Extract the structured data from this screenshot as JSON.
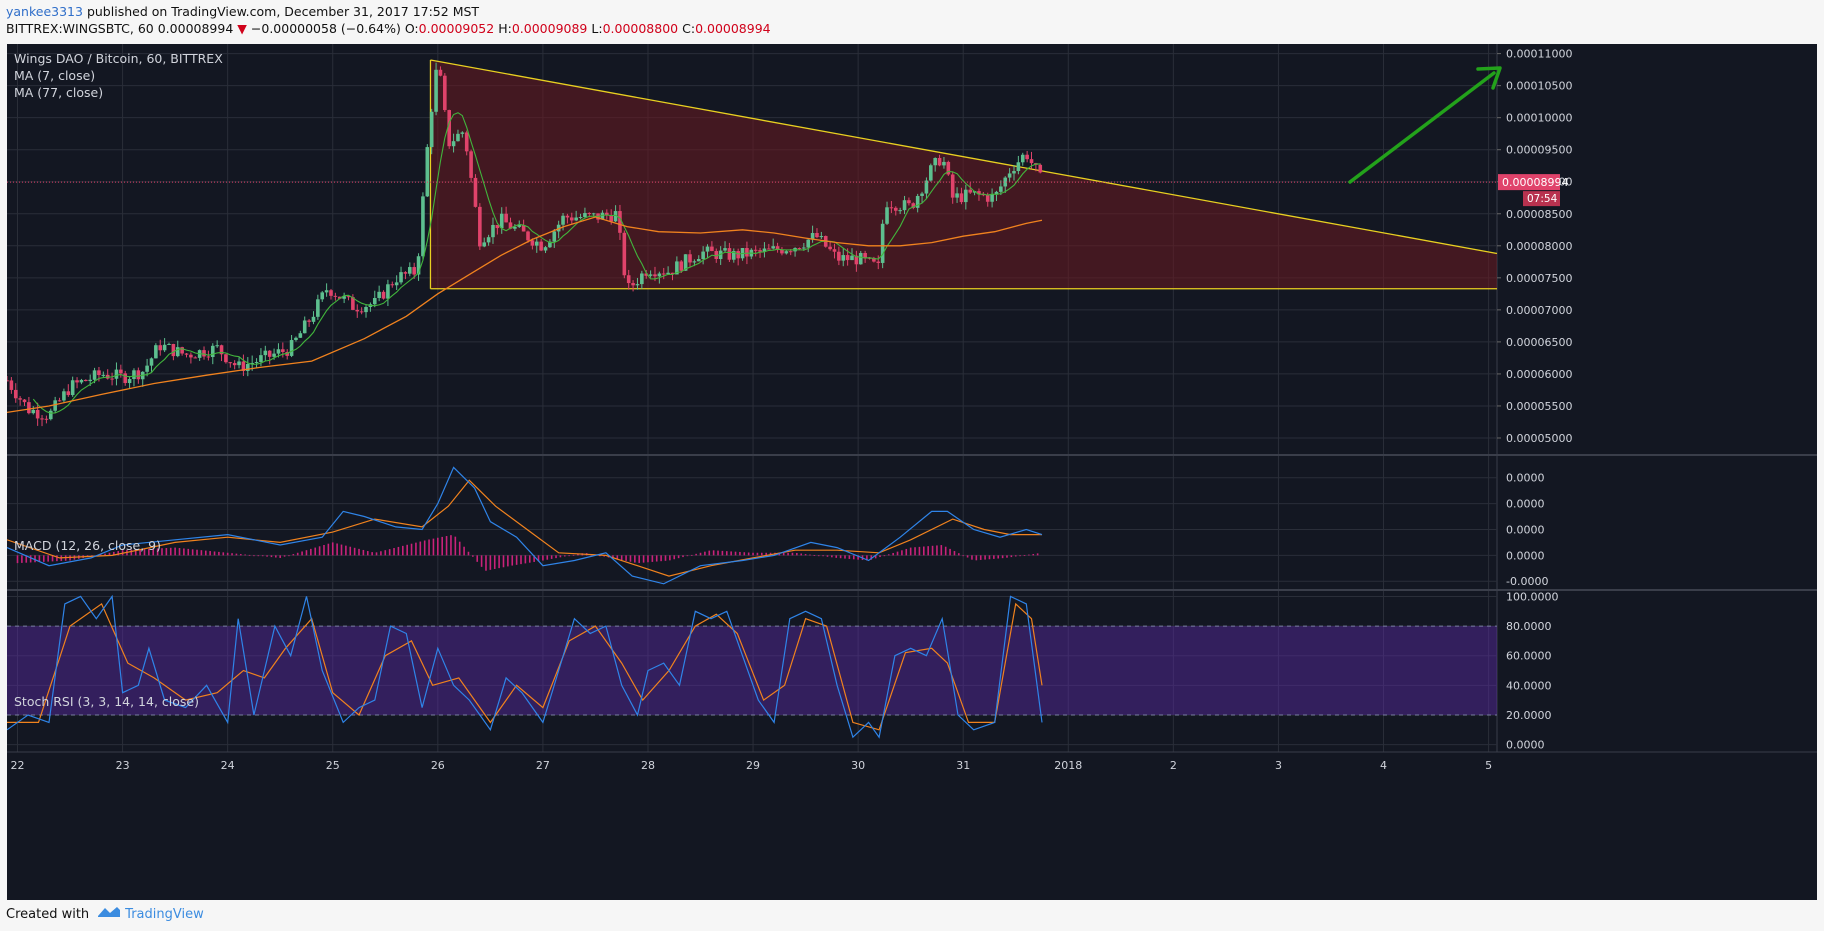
{
  "header": {
    "username": "yankee3313",
    "published_text": "published on TradingView.com, December 31, 2017 17:52 MST",
    "symbol": "BITTREX:WINGSBTC, 60",
    "last": "0.00008994",
    "down_arrow": "▼",
    "change": "−0.00000058 (−0.64%)",
    "o_label": "O:",
    "o_value": "0.00009052",
    "h_label": "H:",
    "h_value": "0.00009089",
    "l_label": "L:",
    "l_value": "0.00008800",
    "c_label": "C:",
    "c_value": "0.00008994"
  },
  "footer": {
    "created_with": "Created with",
    "brand": "TradingView"
  },
  "colors": {
    "background": "#131722",
    "grid": "#2a2e39",
    "up": "#5dbf8f",
    "down": "#e0436b",
    "ma7": "#41b53c",
    "ma77": "#f0821e",
    "triangle_line": "#e8d021",
    "triangle_fill": "#6b1a20",
    "arrow": "#23a21b",
    "macd": "#2f84e8",
    "signal": "#f0821e",
    "hist": "#c9227a",
    "rsi_k": "#2f84e8",
    "rsi_d": "#f0821e",
    "rsi_band": "#5b2aa6",
    "price_tag": "#e0436b"
  },
  "chart_data": [
    {
      "type": "candlestick",
      "title": "Wings DAO / Bitcoin, 60, BITTREX",
      "legend": [
        "MA (7, close)",
        "MA (77, close)"
      ],
      "x_ticks": [
        "22",
        "23",
        "24",
        "25",
        "26",
        "27",
        "28",
        "29",
        "30",
        "31",
        "2018",
        "2",
        "3",
        "4",
        "5"
      ],
      "y_ticks": [
        "0.00011000",
        "0.00010500",
        "0.00010000",
        "0.00009500",
        "0.00009000",
        "0.00008500",
        "0.00008000",
        "0.00007500",
        "0.00007000",
        "0.00006500",
        "0.00006000",
        "0.00005500",
        "0.00005000"
      ],
      "ylim": [
        4.75e-05,
        0.0001115
      ],
      "xlim": [
        21.9,
        36.08
      ],
      "current_price": "0.00008994",
      "countdown": "07:54",
      "price_path": [
        [
          21.9,
          5.9e-05
        ],
        [
          22.1,
          5.45e-05
        ],
        [
          22.3,
          5.35e-05
        ],
        [
          22.5,
          5.8e-05
        ],
        [
          22.8,
          6e-05
        ],
        [
          23.0,
          5.95e-05
        ],
        [
          23.2,
          6.05e-05
        ],
        [
          23.35,
          6.45e-05
        ],
        [
          23.6,
          6.3e-05
        ],
        [
          23.9,
          6.4e-05
        ],
        [
          24.1,
          6.1e-05
        ],
        [
          24.35,
          6.25e-05
        ],
        [
          24.6,
          6.4e-05
        ],
        [
          24.8,
          6.9e-05
        ],
        [
          24.95,
          7.35e-05
        ],
        [
          25.2,
          7.05e-05
        ],
        [
          25.4,
          7.1e-05
        ],
        [
          25.6,
          7.5e-05
        ],
        [
          25.8,
          7.6e-05
        ],
        [
          25.92,
          9.9e-05
        ],
        [
          26.0,
          0.000109
        ],
        [
          26.1,
          9.6e-05
        ],
        [
          26.25,
          9.8e-05
        ],
        [
          26.4,
          8.1e-05
        ],
        [
          26.6,
          8.4e-05
        ],
        [
          26.8,
          8.2e-05
        ],
        [
          27.0,
          8e-05
        ],
        [
          27.2,
          8.45e-05
        ],
        [
          27.5,
          8.45e-05
        ],
        [
          27.7,
          8.5e-05
        ],
        [
          27.8,
          7.3e-05
        ],
        [
          28.0,
          7.65e-05
        ],
        [
          28.2,
          7.6e-05
        ],
        [
          28.5,
          7.9e-05
        ],
        [
          28.8,
          7.85e-05
        ],
        [
          29.1,
          7.9e-05
        ],
        [
          29.4,
          8e-05
        ],
        [
          29.6,
          8.15e-05
        ],
        [
          29.8,
          7.8e-05
        ],
        [
          30.0,
          7.8e-05
        ],
        [
          30.2,
          7.65e-05
        ],
        [
          30.25,
          8.7e-05
        ],
        [
          30.5,
          8.6e-05
        ],
        [
          30.7,
          9.2e-05
        ],
        [
          30.8,
          9.4e-05
        ],
        [
          30.9,
          8.75e-05
        ],
        [
          31.1,
          8.8e-05
        ],
        [
          31.3,
          8.75e-05
        ],
        [
          31.45,
          9.2e-05
        ],
        [
          31.6,
          9.45e-05
        ],
        [
          31.75,
          8.99e-05
        ]
      ],
      "ma77_path": [
        [
          21.9,
          5.4e-05
        ],
        [
          22.3,
          5.5e-05
        ],
        [
          22.8,
          5.68e-05
        ],
        [
          23.3,
          5.85e-05
        ],
        [
          23.8,
          5.98e-05
        ],
        [
          24.3,
          6.1e-05
        ],
        [
          24.8,
          6.2e-05
        ],
        [
          25.3,
          6.55e-05
        ],
        [
          25.7,
          6.9e-05
        ],
        [
          26.0,
          7.25e-05
        ],
        [
          26.3,
          7.55e-05
        ],
        [
          26.6,
          7.85e-05
        ],
        [
          26.9,
          8.1e-05
        ],
        [
          27.2,
          8.3e-05
        ],
        [
          27.5,
          8.45e-05
        ],
        [
          27.8,
          8.3e-05
        ],
        [
          28.1,
          8.22e-05
        ],
        [
          28.5,
          8.2e-05
        ],
        [
          28.9,
          8.25e-05
        ],
        [
          29.2,
          8.2e-05
        ],
        [
          29.5,
          8.12e-05
        ],
        [
          29.8,
          8.05e-05
        ],
        [
          30.1,
          8e-05
        ],
        [
          30.4,
          8e-05
        ],
        [
          30.7,
          8.05e-05
        ],
        [
          31.0,
          8.15e-05
        ],
        [
          31.3,
          8.22e-05
        ],
        [
          31.6,
          8.35e-05
        ],
        [
          31.75,
          8.4e-05
        ]
      ],
      "triangle": {
        "apex": [
          25.93,
          0.000109
        ],
        "upper_end": [
          36.08,
          7.88e-05
        ],
        "bottom": [
          25.93,
          7.33e-05
        ],
        "bottom_end": [
          36.08,
          7.33e-05
        ]
      }
    },
    {
      "type": "line",
      "title": "MACD (12, 26, close, 9)",
      "y_ticks": [
        "0.0000",
        "0.0000",
        "0.0000",
        "0.0000",
        "-0.0000"
      ],
      "ylim": [
        -1.3,
        3.8
      ],
      "macd": [
        [
          21.9,
          0.3
        ],
        [
          22.3,
          -0.4
        ],
        [
          22.7,
          -0.1
        ],
        [
          23.0,
          0.4
        ],
        [
          23.5,
          0.6
        ],
        [
          24.0,
          0.8
        ],
        [
          24.5,
          0.4
        ],
        [
          24.9,
          0.7
        ],
        [
          25.1,
          1.7
        ],
        [
          25.3,
          1.5
        ],
        [
          25.6,
          1.1
        ],
        [
          25.85,
          1.0
        ],
        [
          26.0,
          2.0
        ],
        [
          26.15,
          3.4
        ],
        [
          26.35,
          2.6
        ],
        [
          26.5,
          1.3
        ],
        [
          26.75,
          0.7
        ],
        [
          27.0,
          -0.4
        ],
        [
          27.3,
          -0.2
        ],
        [
          27.6,
          0.1
        ],
        [
          27.85,
          -0.8
        ],
        [
          28.15,
          -1.1
        ],
        [
          28.5,
          -0.4
        ],
        [
          28.9,
          -0.2
        ],
        [
          29.2,
          0.0
        ],
        [
          29.55,
          0.5
        ],
        [
          29.8,
          0.3
        ],
        [
          30.1,
          -0.2
        ],
        [
          30.4,
          0.7
        ],
        [
          30.7,
          1.7
        ],
        [
          30.85,
          1.7
        ],
        [
          31.1,
          1.0
        ],
        [
          31.35,
          0.7
        ],
        [
          31.6,
          1.0
        ],
        [
          31.75,
          0.8
        ]
      ],
      "signal": [
        [
          21.9,
          0.6
        ],
        [
          22.4,
          -0.1
        ],
        [
          22.9,
          0.0
        ],
        [
          23.5,
          0.5
        ],
        [
          24.0,
          0.7
        ],
        [
          24.5,
          0.5
        ],
        [
          25.0,
          0.9
        ],
        [
          25.4,
          1.4
        ],
        [
          25.85,
          1.1
        ],
        [
          26.1,
          1.9
        ],
        [
          26.3,
          2.9
        ],
        [
          26.55,
          1.9
        ],
        [
          26.85,
          1.0
        ],
        [
          27.15,
          0.1
        ],
        [
          27.6,
          0.0
        ],
        [
          27.9,
          -0.4
        ],
        [
          28.2,
          -0.8
        ],
        [
          28.6,
          -0.4
        ],
        [
          29.0,
          -0.1
        ],
        [
          29.4,
          0.2
        ],
        [
          29.8,
          0.2
        ],
        [
          30.2,
          0.1
        ],
        [
          30.5,
          0.6
        ],
        [
          30.9,
          1.4
        ],
        [
          31.2,
          1.0
        ],
        [
          31.45,
          0.8
        ],
        [
          31.75,
          0.8
        ]
      ],
      "histogram": [
        [
          22.0,
          -0.3
        ],
        [
          22.5,
          -0.2
        ],
        [
          23.0,
          0.2
        ],
        [
          23.5,
          0.3
        ],
        [
          24.0,
          0.1
        ],
        [
          24.5,
          -0.1
        ],
        [
          25.0,
          0.5
        ],
        [
          25.4,
          0.1
        ],
        [
          25.9,
          0.6
        ],
        [
          26.15,
          0.8
        ],
        [
          26.45,
          -0.6
        ],
        [
          26.7,
          -0.4
        ],
        [
          27.0,
          -0.2
        ],
        [
          27.4,
          0.1
        ],
        [
          27.9,
          -0.3
        ],
        [
          28.2,
          -0.2
        ],
        [
          28.6,
          0.2
        ],
        [
          29.0,
          0.1
        ],
        [
          29.4,
          0.1
        ],
        [
          29.8,
          -0.1
        ],
        [
          30.1,
          -0.2
        ],
        [
          30.5,
          0.3
        ],
        [
          30.8,
          0.4
        ],
        [
          31.1,
          -0.2
        ],
        [
          31.4,
          -0.1
        ],
        [
          31.75,
          0.1
        ]
      ]
    },
    {
      "type": "line",
      "title": "Stoch RSI (3, 3, 14, 14, close)",
      "y_ticks": [
        "100.0000",
        "80.0000",
        "60.0000",
        "40.0000",
        "20.0000",
        "0.0000"
      ],
      "ylim": [
        -5,
        103
      ],
      "bands": [
        20,
        80
      ],
      "k": [
        [
          21.9,
          10
        ],
        [
          22.1,
          20
        ],
        [
          22.3,
          15
        ],
        [
          22.45,
          95
        ],
        [
          22.6,
          100
        ],
        [
          22.75,
          85
        ],
        [
          22.9,
          100
        ],
        [
          23.0,
          35
        ],
        [
          23.15,
          40
        ],
        [
          23.25,
          65
        ],
        [
          23.4,
          30
        ],
        [
          23.6,
          25
        ],
        [
          23.8,
          40
        ],
        [
          24.0,
          15
        ],
        [
          24.1,
          85
        ],
        [
          24.25,
          20
        ],
        [
          24.45,
          80
        ],
        [
          24.6,
          60
        ],
        [
          24.75,
          100
        ],
        [
          24.9,
          50
        ],
        [
          25.1,
          15
        ],
        [
          25.25,
          25
        ],
        [
          25.4,
          30
        ],
        [
          25.55,
          80
        ],
        [
          25.7,
          75
        ],
        [
          25.85,
          25
        ],
        [
          26.0,
          65
        ],
        [
          26.15,
          40
        ],
        [
          26.3,
          30
        ],
        [
          26.5,
          10
        ],
        [
          26.65,
          45
        ],
        [
          26.8,
          35
        ],
        [
          27.0,
          15
        ],
        [
          27.15,
          50
        ],
        [
          27.3,
          85
        ],
        [
          27.45,
          75
        ],
        [
          27.6,
          80
        ],
        [
          27.75,
          40
        ],
        [
          27.9,
          20
        ],
        [
          28.0,
          50
        ],
        [
          28.15,
          55
        ],
        [
          28.3,
          40
        ],
        [
          28.45,
          90
        ],
        [
          28.6,
          85
        ],
        [
          28.75,
          90
        ],
        [
          28.9,
          60
        ],
        [
          29.05,
          30
        ],
        [
          29.2,
          15
        ],
        [
          29.35,
          85
        ],
        [
          29.5,
          90
        ],
        [
          29.65,
          85
        ],
        [
          29.8,
          40
        ],
        [
          29.95,
          5
        ],
        [
          30.1,
          15
        ],
        [
          30.2,
          5
        ],
        [
          30.35,
          60
        ],
        [
          30.5,
          65
        ],
        [
          30.65,
          60
        ],
        [
          30.8,
          85
        ],
        [
          30.95,
          20
        ],
        [
          31.1,
          10
        ],
        [
          31.3,
          15
        ],
        [
          31.45,
          100
        ],
        [
          31.6,
          95
        ],
        [
          31.75,
          15
        ]
      ],
      "d": [
        [
          21.9,
          15
        ],
        [
          22.2,
          15
        ],
        [
          22.5,
          80
        ],
        [
          22.8,
          95
        ],
        [
          23.05,
          55
        ],
        [
          23.3,
          45
        ],
        [
          23.6,
          30
        ],
        [
          23.9,
          35
        ],
        [
          24.15,
          50
        ],
        [
          24.35,
          45
        ],
        [
          24.55,
          65
        ],
        [
          24.8,
          85
        ],
        [
          25.0,
          35
        ],
        [
          25.25,
          20
        ],
        [
          25.5,
          60
        ],
        [
          25.75,
          70
        ],
        [
          25.95,
          40
        ],
        [
          26.2,
          45
        ],
        [
          26.5,
          15
        ],
        [
          26.75,
          40
        ],
        [
          27.0,
          25
        ],
        [
          27.25,
          70
        ],
        [
          27.5,
          80
        ],
        [
          27.75,
          55
        ],
        [
          27.95,
          30
        ],
        [
          28.2,
          50
        ],
        [
          28.45,
          80
        ],
        [
          28.65,
          88
        ],
        [
          28.85,
          75
        ],
        [
          29.1,
          30
        ],
        [
          29.3,
          40
        ],
        [
          29.5,
          85
        ],
        [
          29.7,
          80
        ],
        [
          29.95,
          15
        ],
        [
          30.2,
          10
        ],
        [
          30.45,
          62
        ],
        [
          30.7,
          65
        ],
        [
          30.85,
          55
        ],
        [
          31.05,
          15
        ],
        [
          31.3,
          15
        ],
        [
          31.5,
          95
        ],
        [
          31.65,
          85
        ],
        [
          31.75,
          40
        ]
      ]
    }
  ],
  "annotations": {
    "bull_arrow": "up-right-arrow"
  }
}
